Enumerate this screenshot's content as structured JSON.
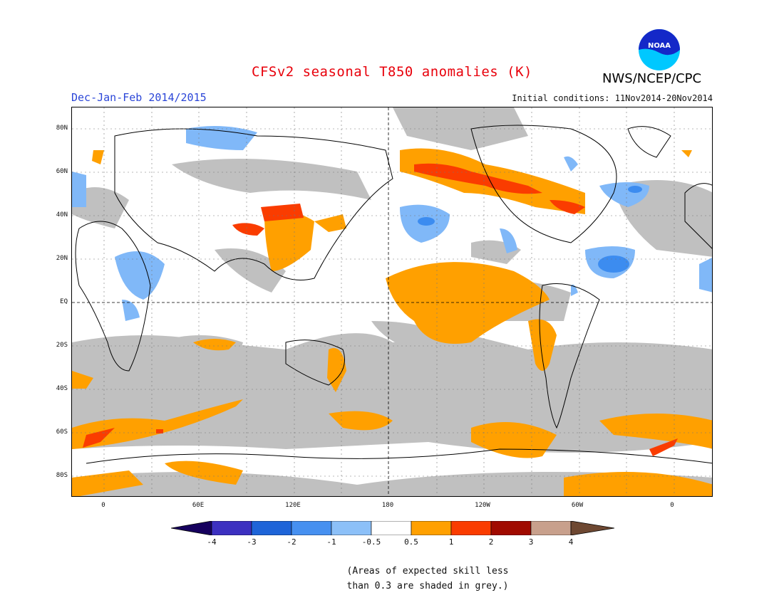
{
  "header": {
    "title": "CFSv2 seasonal T850 anomalies (K)",
    "season": "Dec-Jan-Feb 2014/2015",
    "initial_conditions": "Initial conditions: 11Nov2014-20Nov2014",
    "agency": "NWS/NCEP/CPC",
    "logo_text": "NOAA"
  },
  "map": {
    "projection": "cylindrical equidistant, centered on 180",
    "lat_ticks": [
      "80N",
      "60N",
      "40N",
      "20N",
      "EQ",
      "20S",
      "40S",
      "60S",
      "80S"
    ],
    "lon_ticks": [
      "0",
      "60E",
      "120E",
      "180",
      "120W",
      "60W",
      "0"
    ],
    "regions": {
      "warm_moderate": "Central/eastern tropical Pacific, Alaska, western and northeastern Canada, eastern China, Southern Ocean bands, eastern Australia",
      "warm_strong": "Southern Alaska/Yukon, Great Lakes-southern Canada, Tibetan Plateau and northern China, South Atlantic near Antarctica",
      "cold": "North Pacific near 35N, subtropical North Atlantic, Arctic north of Scandinavia, eastern Africa and Arabian Sea region, Mexico, northern South America",
      "low_skill": "Grey shading over large parts of the extratropics and oceans"
    }
  },
  "legend": {
    "labels": [
      "-4",
      "-3",
      "-2",
      "-1",
      "-0.5",
      "0.5",
      "1",
      "2",
      "3",
      "4"
    ],
    "colors": [
      "#16005e",
      "#3c30c0",
      "#1e64d8",
      "#4690f0",
      "#8cc0f8",
      "#ffffff",
      "#ffa000",
      "#fa3c00",
      "#a00a00",
      "#c8a08c",
      "#6e4832"
    ]
  },
  "footnote": {
    "line1": "(Areas of expected skill less",
    "line2": "than 0.3 are shaded in grey.)"
  },
  "colors": {
    "title": "#e8000b",
    "season": "#2b46d8",
    "grey_low_skill": "#c0c0c0",
    "warm1": "#ffa000",
    "warm2": "#fa3c00",
    "cold1": "#80b8f8",
    "cold2": "#3c8cf0"
  }
}
